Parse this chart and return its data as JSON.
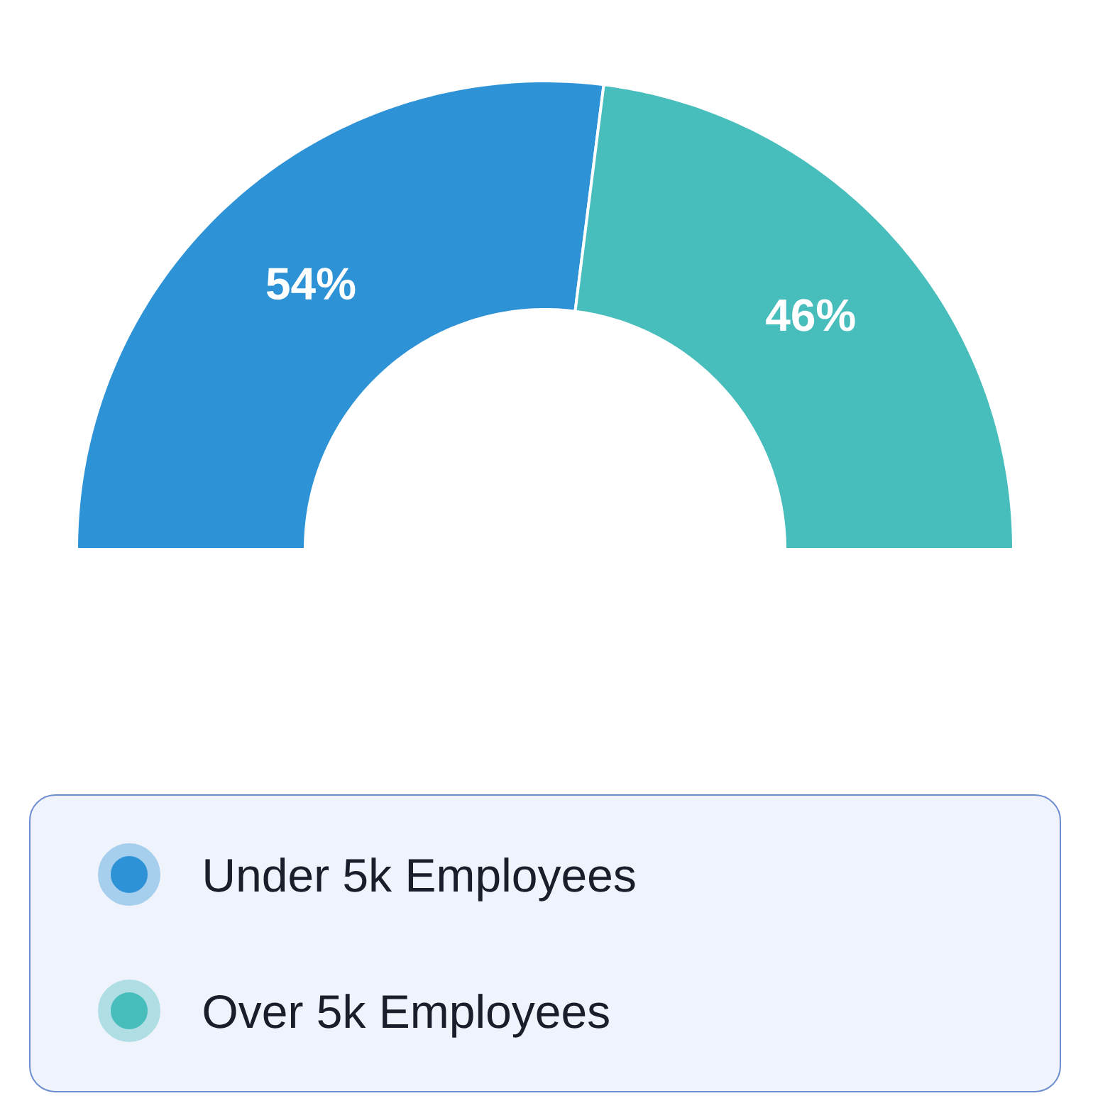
{
  "chart_data": {
    "type": "donut",
    "categories": [
      "Under 5k Employees",
      "Over 5k Employees"
    ],
    "values": [
      54,
      46
    ],
    "colors": [
      "#2e93d6",
      "#47bdbc"
    ],
    "value_labels": [
      "54%",
      "46%"
    ],
    "legend": "bottom"
  }
}
